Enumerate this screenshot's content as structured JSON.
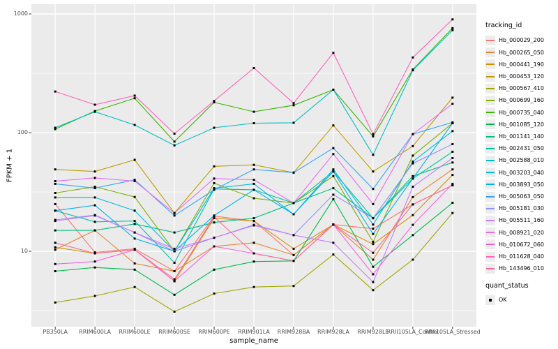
{
  "chart_data": {
    "type": "line",
    "title": "",
    "xlabel": "sample_name",
    "ylabel": "FPKM + 1",
    "y_scale": "log10",
    "ylim": [
      2.8,
      1200
    ],
    "grid": true,
    "yticks": [
      {
        "value": 10,
        "label": "10"
      },
      {
        "value": 100,
        "label": "100"
      },
      {
        "value": 1000,
        "label": "1000"
      }
    ],
    "y_minor_ticks": [
      3.162,
      31.62,
      316.2
    ],
    "categories": [
      "PB350LA",
      "RRIM600LA",
      "RRIM600LE",
      "RRIM600SE",
      "RRIM600PE",
      "RRIM901LA",
      "RRIM928BA",
      "RRIM928LA",
      "RRIM928LE",
      "RRII105LA_Control",
      "RRII105LA_Stressed"
    ],
    "series": [
      {
        "name": "Hb_000029_200",
        "color": "#F8766D",
        "values": [
          25,
          9.8,
          10.5,
          6.8,
          19.8,
          18,
          9.3,
          16.8,
          15.5,
          24.8,
          36
        ]
      },
      {
        "name": "Hb_000265_050",
        "color": "#EA8331",
        "values": [
          10.3,
          15,
          7.9,
          6.8,
          11,
          11.8,
          9.3,
          16.8,
          8.5,
          28.6,
          49
        ]
      },
      {
        "name": "Hb_000441_190",
        "color": "#D89000",
        "values": [
          10.8,
          9.6,
          10.3,
          5.6,
          19,
          18,
          10.5,
          16.8,
          11.5,
          20.2,
          44
        ]
      },
      {
        "name": "Hb_000453_120",
        "color": "#C09B00",
        "values": [
          49,
          47,
          59,
          21,
          52,
          53.5,
          46,
          115,
          47,
          77,
          197
        ]
      },
      {
        "name": "Hb_000567_410",
        "color": "#A3A500",
        "values": [
          3.7,
          4.2,
          5.0,
          3.1,
          4.4,
          5.0,
          5.1,
          9.4,
          4.7,
          8.5,
          21
        ]
      },
      {
        "name": "Hb_000699_160",
        "color": "#7CAE00",
        "values": [
          31,
          35,
          28.7,
          10,
          37.5,
          28,
          25.5,
          43,
          12,
          64,
          120
        ]
      },
      {
        "name": "Hb_000735_040",
        "color": "#39B600",
        "values": [
          107,
          152,
          195,
          84,
          180,
          150,
          170,
          230,
          93,
          340,
          760
        ]
      },
      {
        "name": "Hb_001085_120",
        "color": "#00BB4E",
        "values": [
          6.8,
          7.3,
          7.0,
          4.3,
          7.0,
          8.2,
          8.3,
          27.5,
          7.4,
          13.7,
          25.6
        ]
      },
      {
        "name": "Hb_001141_140",
        "color": "#00BF7D",
        "values": [
          15,
          15,
          17,
          14.4,
          17.5,
          19,
          25.5,
          34,
          19,
          43,
          56
        ]
      },
      {
        "name": "Hb_002431_050",
        "color": "#00C1A3",
        "values": [
          22,
          17.7,
          18,
          8,
          33.5,
          33,
          25.5,
          47,
          19,
          41,
          69
        ]
      },
      {
        "name": "Hb_002588_010",
        "color": "#00BFC4",
        "values": [
          110,
          150,
          116,
          78,
          110,
          120,
          121,
          230,
          65,
          335,
          730
        ]
      },
      {
        "name": "Hb_003203_040",
        "color": "#00BAE0",
        "values": [
          28.4,
          28.4,
          22,
          10,
          34,
          37,
          20.5,
          49,
          16.8,
          57,
          103
        ]
      },
      {
        "name": "Hb_003893_050",
        "color": "#00B0F6",
        "values": [
          22,
          24.4,
          12.8,
          10,
          20,
          33,
          20.5,
          47,
          14,
          41,
          120
        ]
      },
      {
        "name": "Hb_005063_050",
        "color": "#35A2FF",
        "values": [
          37,
          34,
          40,
          20,
          33,
          49,
          46,
          74,
          33.5,
          97,
          122
        ]
      },
      {
        "name": "Hb_005181_030",
        "color": "#9590FF",
        "values": [
          18.4,
          20.2,
          14.4,
          10,
          13,
          16.7,
          13.7,
          30,
          19,
          55,
          80
        ]
      },
      {
        "name": "Hb_005511_160",
        "color": "#C77CFF",
        "values": [
          18,
          20,
          14.4,
          10.5,
          13,
          16.5,
          13.7,
          11.8,
          5.5,
          35,
          61
        ]
      },
      {
        "name": "Hb_008921_020",
        "color": "#E76BF3",
        "values": [
          39,
          41.5,
          39,
          21,
          41,
          40,
          25.5,
          66,
          25,
          97,
          175
        ]
      },
      {
        "name": "Hb_010672_060",
        "color": "#FA62DB",
        "values": [
          7.8,
          8.2,
          10.3,
          5.6,
          11,
          9.6,
          8.3,
          16.8,
          6.4,
          16.7,
          37
        ]
      },
      {
        "name": "Hb_011628_040",
        "color": "#FF62BC",
        "values": [
          222,
          172,
          205,
          98,
          185,
          350,
          177,
          470,
          97,
          430,
          900
        ]
      },
      {
        "name": "Hb_143496_010",
        "color": "#FF6A98",
        "values": [
          11.8,
          9.6,
          10.3,
          5.8,
          19.5,
          9.6,
          8.3,
          16.8,
          9.7,
          24.8,
          36
        ]
      }
    ],
    "legend": {
      "position": "right",
      "color_title": "tracking_id",
      "shape_title": "quant_status",
      "shape_items": [
        {
          "label": "OK",
          "marker": "black-square"
        }
      ]
    },
    "colors": {
      "panel_background": "#EBEBEB",
      "gridline": "#FFFFFF",
      "tick_mark": "#333333",
      "tick_text": "#4D4D4D",
      "point": "#000000"
    }
  }
}
